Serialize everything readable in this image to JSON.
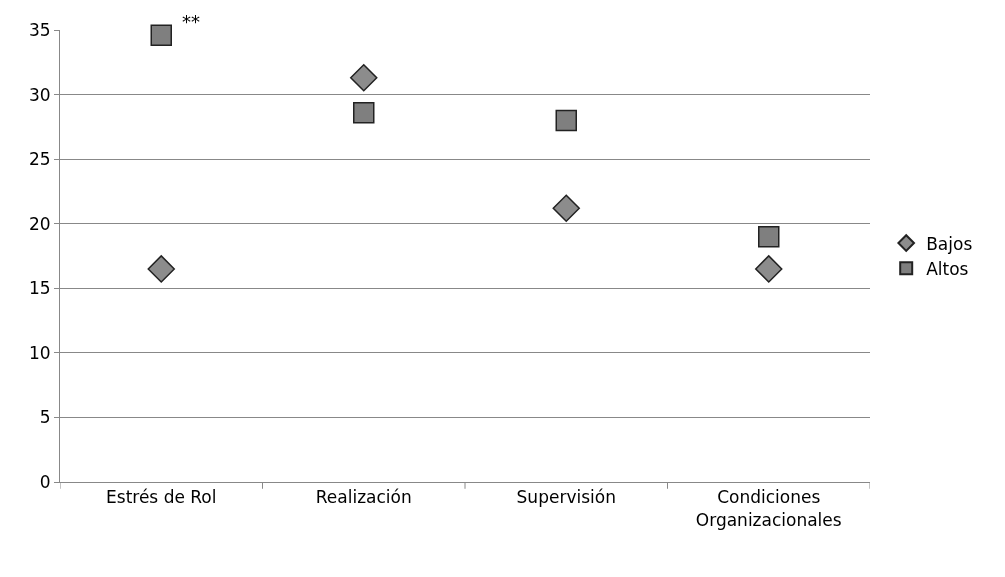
{
  "chart_data": {
    "type": "scatter",
    "categories": [
      "Estrés de Rol",
      "Realización",
      "Supervisión",
      "Condiciones Organizacionales"
    ],
    "series": [
      {
        "name": "Bajos",
        "color": "#8c8c8c",
        "marker": "diamond",
        "values": [
          16.5,
          31.3,
          21.2,
          16.5
        ]
      },
      {
        "name": "Altos",
        "color": "#7f7f7f",
        "marker": "square",
        "values": [
          34.6,
          28.6,
          28.0,
          19.0
        ]
      }
    ],
    "ylim": [
      0,
      35
    ],
    "yticks": [
      0,
      5,
      10,
      15,
      20,
      25,
      30,
      35
    ],
    "grid": "y",
    "legend": "right",
    "annotations": [
      {
        "text": "**",
        "x": "Estrés de Rol",
        "y": 34.6
      }
    ]
  }
}
